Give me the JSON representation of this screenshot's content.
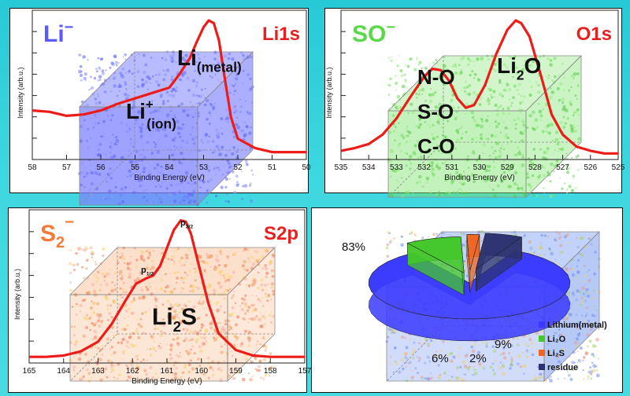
{
  "colors": {
    "background": "#3ad3dc",
    "curve": "#ee1c18",
    "li_cloud": "#7f84ff",
    "so_cloud": "#7de36c",
    "s_cloud_warm": "#f6a56a",
    "s_cloud_yellow": "#f4e27a",
    "pie_blue": "#3a3aff",
    "pie_green": "#44c82a",
    "pie_orange": "#ee6622",
    "pie_dark": "#2c3370"
  },
  "chart_data": [
    {
      "type": "line",
      "species_label": "Li",
      "species_charge": "−",
      "region_label": "Li1s",
      "xlabel": "Binding Energy (eV)",
      "ylabel": "Intensity (arb.u.)",
      "x_ticks": [
        "58",
        "57",
        "56",
        "55",
        "54",
        "53",
        "52",
        "51",
        "50"
      ],
      "xlim": [
        58,
        50
      ],
      "x_reversed": true,
      "peak_annotations": [
        {
          "main": "Li",
          "sup": "+",
          "sub": "(ion)",
          "x": 54.6
        },
        {
          "main": "Li",
          "sub": "(metal)",
          "x": 52.7
        }
      ],
      "series": [
        {
          "x": [
            58,
            57.5,
            57,
            56.5,
            56,
            55.5,
            55,
            54.5,
            54,
            53.7,
            53.4,
            53.2,
            53.0,
            52.85,
            52.7,
            52.55,
            52.4,
            52.2,
            52.0,
            51.5,
            51,
            50.5,
            50
          ],
          "y": [
            0.33,
            0.32,
            0.29,
            0.3,
            0.33,
            0.38,
            0.42,
            0.46,
            0.5,
            0.6,
            0.72,
            0.84,
            0.95,
            1.0,
            0.98,
            0.85,
            0.6,
            0.28,
            0.12,
            0.05,
            0.02,
            0.02,
            0.02
          ]
        }
      ]
    },
    {
      "type": "line",
      "species_label": "SO",
      "species_charge": "−",
      "region_label": "O1s",
      "xlabel": "Binding Energy (eV)",
      "ylabel": "Intensity (arb.u.)",
      "x_ticks": [
        "535",
        "534",
        "533",
        "532",
        "531",
        "530",
        "529",
        "528",
        "527",
        "526",
        "525"
      ],
      "xlim": [
        535,
        525
      ],
      "x_reversed": true,
      "peak_annotations": [
        {
          "main": "N-O",
          "x": 531.3
        },
        {
          "main": "S-O",
          "x": 531.3
        },
        {
          "main": "C-O",
          "x": 531.3
        },
        {
          "main": "Li",
          "sub": "2",
          "tail": "O",
          "x": 528.6
        }
      ],
      "series": [
        {
          "x": [
            535,
            534.5,
            534,
            533.5,
            533,
            532.5,
            532,
            531.7,
            531.4,
            531.1,
            530.8,
            530.5,
            530.2,
            529.8,
            529.4,
            529.0,
            528.7,
            528.5,
            528.2,
            527.8,
            527.4,
            527,
            526.5,
            526,
            525.5,
            525
          ],
          "y": [
            0.03,
            0.05,
            0.08,
            0.15,
            0.27,
            0.43,
            0.58,
            0.64,
            0.63,
            0.55,
            0.42,
            0.35,
            0.37,
            0.52,
            0.75,
            0.93,
            1.0,
            0.98,
            0.88,
            0.6,
            0.3,
            0.15,
            0.06,
            0.03,
            0.01,
            0.01
          ]
        }
      ]
    },
    {
      "type": "line",
      "species_label": "S",
      "species_sub": "2",
      "species_charge": "−",
      "region_label": "S2p",
      "xlabel": "Binding Energy (eV)",
      "ylabel": "Intensity (arb.u.)",
      "x_ticks": [
        "165",
        "164",
        "163",
        "162",
        "161",
        "160",
        "159",
        "158",
        "157"
      ],
      "xlim": [
        165,
        157
      ],
      "x_reversed": true,
      "peak_annotations": [
        {
          "main": "p",
          "sub": "1/2",
          "x": 161.6
        },
        {
          "main": "p",
          "sub": "3/2",
          "x": 160.5
        },
        {
          "main": "Li",
          "sub": "2",
          "tail": "S",
          "x": 160.6
        }
      ],
      "series": [
        {
          "x": [
            165,
            164.5,
            164,
            163.5,
            163,
            162.6,
            162.2,
            161.9,
            161.6,
            161.4,
            161.2,
            161.0,
            160.8,
            160.6,
            160.45,
            160.3,
            160.1,
            159.8,
            159.5,
            159.0,
            158.5,
            158,
            157.5,
            157
          ],
          "y": [
            0.01,
            0.01,
            0.02,
            0.05,
            0.12,
            0.25,
            0.42,
            0.54,
            0.58,
            0.6,
            0.67,
            0.8,
            0.93,
            1.0,
            0.99,
            0.9,
            0.7,
            0.4,
            0.18,
            0.06,
            0.02,
            0.01,
            0.01,
            0.01
          ]
        }
      ]
    },
    {
      "type": "pie",
      "categories": [
        "Lithium(metal)",
        "Li₂O",
        "Li₂S",
        "residue"
      ],
      "values": [
        83,
        9,
        2,
        6
      ],
      "value_labels": [
        "83%",
        "9%",
        "2%",
        "6%"
      ],
      "colors": [
        "#3a3aff",
        "#44c82a",
        "#ee6622",
        "#2c3370"
      ],
      "legend_position": "bottom-right"
    }
  ]
}
